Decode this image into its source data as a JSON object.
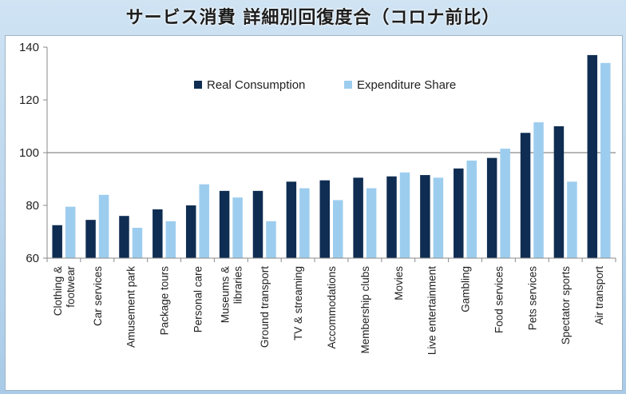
{
  "title": "サービス消費 詳細別回復度合（コロナ前比）",
  "colors": {
    "real": "#0f2d52",
    "share": "#9dcdee"
  },
  "chart_data": {
    "type": "bar",
    "categories": [
      [
        "Clothing &",
        "footwear"
      ],
      [
        "Car services"
      ],
      [
        "Amusement park"
      ],
      [
        "Package tours"
      ],
      [
        "Personal care"
      ],
      [
        "Museums &",
        "libraries"
      ],
      [
        "Ground transport"
      ],
      [
        "TV & streaming"
      ],
      [
        "Accommodations"
      ],
      [
        "Membership clubs"
      ],
      [
        "Movies"
      ],
      [
        "Live entertainment"
      ],
      [
        "Gambling"
      ],
      [
        "Food services"
      ],
      [
        "Pets services"
      ],
      [
        "Spectator sports"
      ],
      [
        "Air transport"
      ]
    ],
    "series": [
      {
        "name": "Real Consumption",
        "values": [
          72.5,
          74.5,
          76,
          78.5,
          80,
          85.5,
          85.5,
          89,
          89.5,
          90.5,
          91,
          91.5,
          94,
          98,
          107.5,
          110,
          137
        ]
      },
      {
        "name": "Expenditure Share",
        "values": [
          79.5,
          84,
          71.5,
          74,
          88,
          83,
          74,
          86.5,
          82,
          86.5,
          92.5,
          90.5,
          97,
          101.5,
          111.5,
          89,
          134
        ]
      }
    ],
    "ylim": [
      60,
      140
    ],
    "yticks": [
      60,
      80,
      100,
      120,
      140
    ],
    "reference_line": 100,
    "legend_position": "top-left"
  }
}
